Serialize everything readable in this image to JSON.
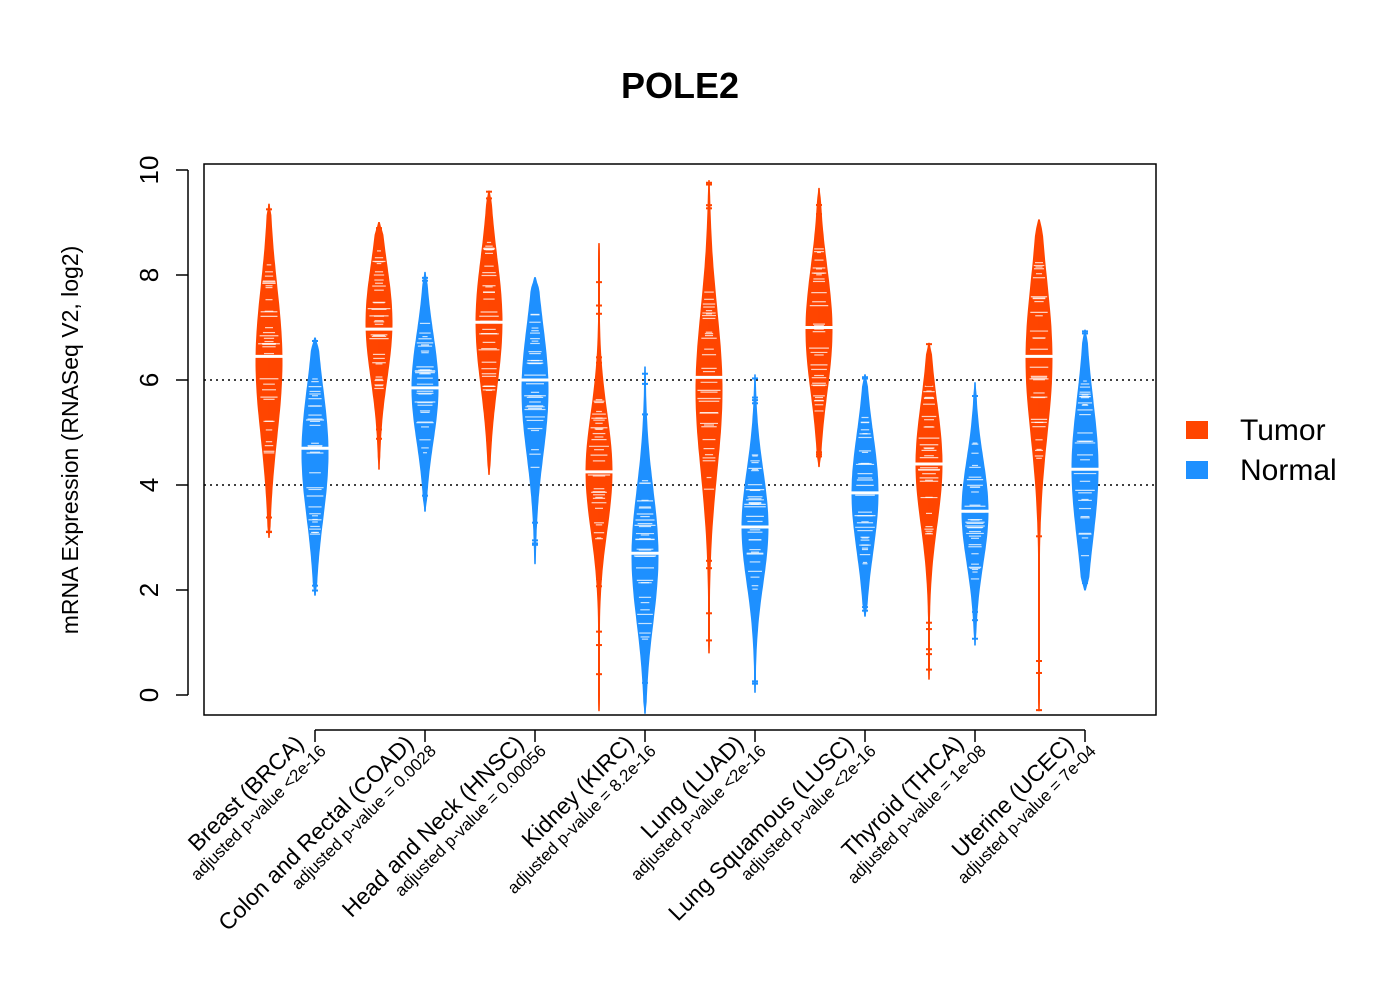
{
  "chart_data": {
    "type": "violin",
    "title": "POLE2",
    "xlabel": "",
    "ylabel": "mRNA Expression (RNASeq V2, log2)",
    "ylim": [
      -0.4,
      10.15
    ],
    "yticks": [
      0,
      2,
      4,
      6,
      8,
      10
    ],
    "reference_lines": [
      4,
      6
    ],
    "legend": {
      "position": "right",
      "entries": [
        {
          "label": "Tumor",
          "color": "#FF4500"
        },
        {
          "label": "Normal",
          "color": "#1E90FF"
        }
      ]
    },
    "categories": [
      {
        "name": "Breast (BRCA)",
        "pvalue": "adjusted p-value <2e-16"
      },
      {
        "name": "Colon and Rectal (COAD)",
        "pvalue": "adjusted p-value = 0.0028"
      },
      {
        "name": "Head and Neck (HNSC)",
        "pvalue": "adjusted p-value = 0.00056"
      },
      {
        "name": "Kidney (KIRC)",
        "pvalue": "adjusted p-value = 8.2e-16"
      },
      {
        "name": "Lung (LUAD)",
        "pvalue": "adjusted p-value <2e-16"
      },
      {
        "name": "Lung Squamous (LUSC)",
        "pvalue": "adjusted p-value <2e-16"
      },
      {
        "name": "Thyroid (THCA)",
        "pvalue": "adjusted p-value = 1e-08"
      },
      {
        "name": "Uterine (UCEC)",
        "pvalue": "adjusted p-value = 7e-04"
      }
    ],
    "series": [
      {
        "name": "Tumor",
        "color": "#FF4500",
        "violins": [
          {
            "min": 3.0,
            "max": 9.35,
            "median": 6.45,
            "body": [
              4.5,
              8.2
            ]
          },
          {
            "min": 4.3,
            "max": 9.0,
            "median": 6.97,
            "body": [
              5.7,
              8.5
            ]
          },
          {
            "min": 4.2,
            "max": 9.6,
            "median": 7.1,
            "body": [
              5.5,
              8.7
            ]
          },
          {
            "min": -0.3,
            "max": 8.6,
            "median": 4.25,
            "body": [
              2.8,
              5.7
            ]
          },
          {
            "min": 0.8,
            "max": 9.8,
            "median": 6.05,
            "body": [
              3.8,
              7.8
            ]
          },
          {
            "min": 4.35,
            "max": 9.65,
            "median": 7.0,
            "body": [
              5.4,
              8.5
            ]
          },
          {
            "min": 0.3,
            "max": 6.7,
            "median": 4.4,
            "body": [
              2.9,
              5.9
            ]
          },
          {
            "min": -0.3,
            "max": 9.05,
            "median": 6.45,
            "body": [
              4.5,
              8.3
            ]
          }
        ]
      },
      {
        "name": "Normal",
        "color": "#1E90FF",
        "violins": [
          {
            "min": 1.9,
            "max": 6.8,
            "median": 4.7,
            "body": [
              3.0,
              6.2
            ]
          },
          {
            "min": 3.5,
            "max": 8.05,
            "median": 5.85,
            "body": [
              4.5,
              7.2
            ]
          },
          {
            "min": 2.5,
            "max": 7.95,
            "median": 6.0,
            "body": [
              4.2,
              7.4
            ]
          },
          {
            "min": -0.35,
            "max": 6.25,
            "median": 2.7,
            "body": [
              1.0,
              4.3
            ]
          },
          {
            "min": 0.05,
            "max": 6.1,
            "median": 3.2,
            "body": [
              1.8,
              4.6
            ]
          },
          {
            "min": 1.5,
            "max": 6.1,
            "median": 3.85,
            "body": [
              2.4,
              5.3
            ]
          },
          {
            "min": 0.95,
            "max": 5.95,
            "median": 3.5,
            "body": [
              2.2,
              4.8
            ]
          },
          {
            "min": 2.0,
            "max": 6.95,
            "median": 4.3,
            "body": [
              2.6,
              6.0
            ]
          }
        ]
      }
    ]
  }
}
